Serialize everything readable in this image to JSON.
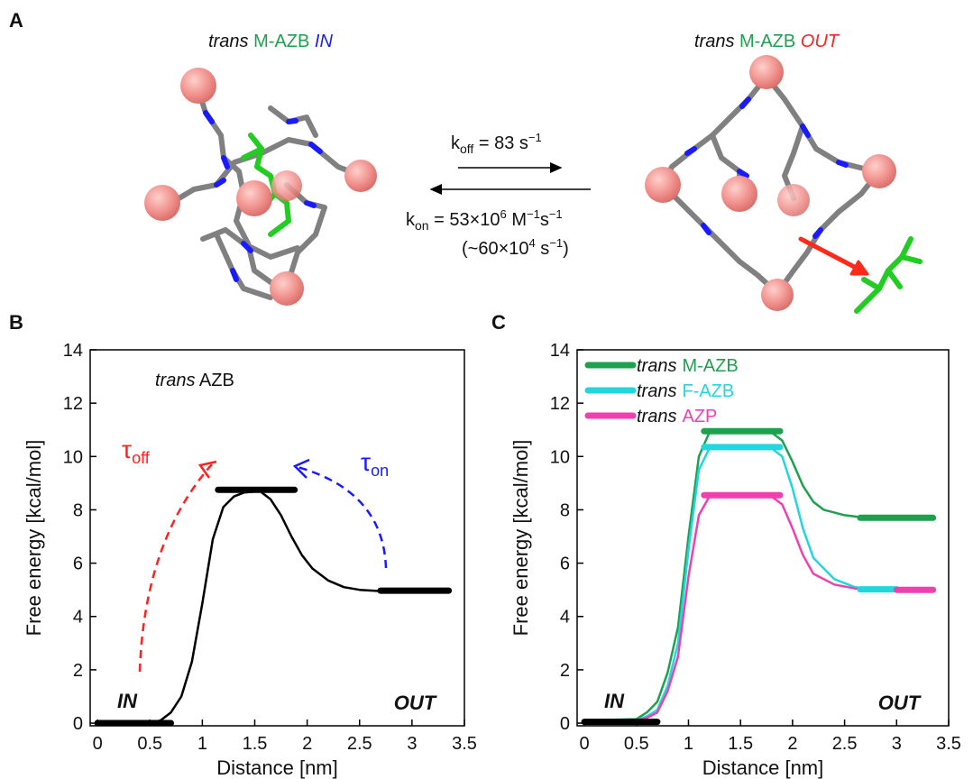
{
  "panel_labels": [
    "A",
    "B",
    "C"
  ],
  "panel_a": {
    "left_title": {
      "prefix": "trans",
      "guest": "M-AZB",
      "state": "IN"
    },
    "right_title": {
      "prefix": "trans",
      "guest": "M-AZB",
      "state": "OUT"
    },
    "k_off": {
      "symbol": "k",
      "sub": "off",
      "text": " = 83 s",
      "sup": "−1"
    },
    "k_on": {
      "symbol": "k",
      "sub": "on",
      "text": " = 53×10",
      "sup": "6",
      "text2": " M",
      "sup2": "−1",
      "text3": "s",
      "sup3": "−1"
    },
    "rate_equiv": {
      "text": "(~60×10",
      "sup": "4",
      "text2": " s",
      "sup2": "−1",
      "text3": ")"
    }
  },
  "chart_data": [
    {
      "type": "line",
      "xlabel": "Distance [nm]",
      "ylabel": "Free energy [kcal/mol]",
      "xlim": [
        -0.07,
        3.5
      ],
      "ylim": [
        -0.1,
        14
      ],
      "xticks": [
        0,
        0.5,
        1,
        1.5,
        2,
        2.5,
        3,
        3.5
      ],
      "yticks": [
        0,
        2,
        4,
        6,
        8,
        10,
        12,
        14
      ],
      "note": {
        "prefix": "trans",
        "text": "AZB"
      },
      "in_label": "IN",
      "out_label": "OUT",
      "tau_off": {
        "symbol": "τ",
        "sub": "off",
        "color": "#ff2020"
      },
      "tau_on": {
        "symbol": "τ",
        "sub": "on",
        "color": "#1a1aff"
      },
      "series": [
        {
          "color": "#000000",
          "width": 2.5,
          "x": [
            0,
            0.5,
            0.6,
            0.7,
            0.8,
            0.9,
            1.0,
            1.1,
            1.2,
            1.3,
            1.4,
            1.55,
            1.65,
            1.75,
            1.85,
            1.95,
            2.05,
            2.2,
            2.35,
            2.5,
            2.7
          ],
          "values": [
            0,
            0,
            0.1,
            0.4,
            1.0,
            2.3,
            4.5,
            6.9,
            8.1,
            8.5,
            8.65,
            8.7,
            8.4,
            7.8,
            7.0,
            6.3,
            5.8,
            5.35,
            5.1,
            5.0,
            4.95
          ]
        },
        {
          "color": "#000000",
          "width": 7,
          "x": [
            0,
            0.7
          ],
          "values": [
            0,
            0
          ]
        },
        {
          "color": "#000000",
          "width": 7,
          "x": [
            1.15,
            1.88
          ],
          "values": [
            8.75,
            8.75
          ]
        },
        {
          "color": "#000000",
          "width": 7,
          "x": [
            2.7,
            3.35
          ],
          "values": [
            4.97,
            4.97
          ]
        }
      ]
    },
    {
      "type": "line",
      "xlabel": "Distance [nm]",
      "ylabel": "Free energy [kcal/mol]",
      "xlim": [
        -0.07,
        3.5
      ],
      "ylim": [
        -0.1,
        14
      ],
      "xticks": [
        0,
        0.5,
        1,
        1.5,
        2,
        2.5,
        3,
        3.5
      ],
      "yticks": [
        0,
        2,
        4,
        6,
        8,
        10,
        12,
        14
      ],
      "legend_prefix": "trans",
      "in_label": "IN",
      "out_label": "OUT",
      "series": [
        {
          "name": "M-AZB",
          "color": "#1fa04f",
          "width": 2.5,
          "x": [
            0,
            0.5,
            0.6,
            0.7,
            0.8,
            0.9,
            1.0,
            1.1,
            1.2,
            1.5,
            1.8,
            1.9,
            2.0,
            2.1,
            2.2,
            2.3,
            2.5,
            2.7
          ],
          "values": [
            0.1,
            0.15,
            0.4,
            0.8,
            1.9,
            3.6,
            7.0,
            10.0,
            10.9,
            11.0,
            10.9,
            10.6,
            9.8,
            8.9,
            8.3,
            8.0,
            7.8,
            7.7
          ]
        },
        {
          "name": "F-AZB",
          "color": "#22d6e0",
          "width": 2.5,
          "x": [
            0,
            0.5,
            0.6,
            0.7,
            0.8,
            0.9,
            1.0,
            1.1,
            1.2,
            1.5,
            1.8,
            1.9,
            2.0,
            2.1,
            2.2,
            2.4,
            2.6,
            2.8
          ],
          "values": [
            0.05,
            0.1,
            0.25,
            0.5,
            1.4,
            3.0,
            6.5,
            9.5,
            10.3,
            10.4,
            10.3,
            10.0,
            8.8,
            7.3,
            6.2,
            5.4,
            5.1,
            5.0
          ]
        },
        {
          "name": "AZP",
          "color": "#f040b0",
          "width": 2.5,
          "x": [
            0,
            0.5,
            0.6,
            0.7,
            0.8,
            0.9,
            1.0,
            1.1,
            1.2,
            1.5,
            1.8,
            1.9,
            2.0,
            2.1,
            2.2,
            2.4,
            2.6,
            2.8
          ],
          "values": [
            0.05,
            0.1,
            0.2,
            0.4,
            1.2,
            2.5,
            5.5,
            7.8,
            8.5,
            8.55,
            8.5,
            8.2,
            7.3,
            6.3,
            5.6,
            5.2,
            5.05,
            5.0
          ]
        },
        {
          "color": "#000000",
          "width": 7,
          "x": [
            0,
            0.7
          ],
          "values": [
            0.05,
            0.05
          ]
        },
        {
          "color": "#1fa04f",
          "width": 7,
          "x": [
            1.15,
            1.88
          ],
          "values": [
            10.95,
            10.95
          ]
        },
        {
          "color": "#22d6e0",
          "width": 7,
          "x": [
            1.15,
            1.88
          ],
          "values": [
            10.35,
            10.35
          ]
        },
        {
          "color": "#f040b0",
          "width": 7,
          "x": [
            1.15,
            1.88
          ],
          "values": [
            8.55,
            8.55
          ]
        },
        {
          "color": "#1fa04f",
          "width": 7,
          "x": [
            2.65,
            3.35
          ],
          "values": [
            7.7,
            7.7
          ]
        },
        {
          "color": "#22d6e0",
          "width": 7,
          "x": [
            2.65,
            3.0
          ],
          "values": [
            5.02,
            5.02
          ]
        },
        {
          "color": "#f040b0",
          "width": 7,
          "x": [
            3.0,
            3.35
          ],
          "values": [
            5.0,
            5.0
          ]
        }
      ]
    }
  ]
}
